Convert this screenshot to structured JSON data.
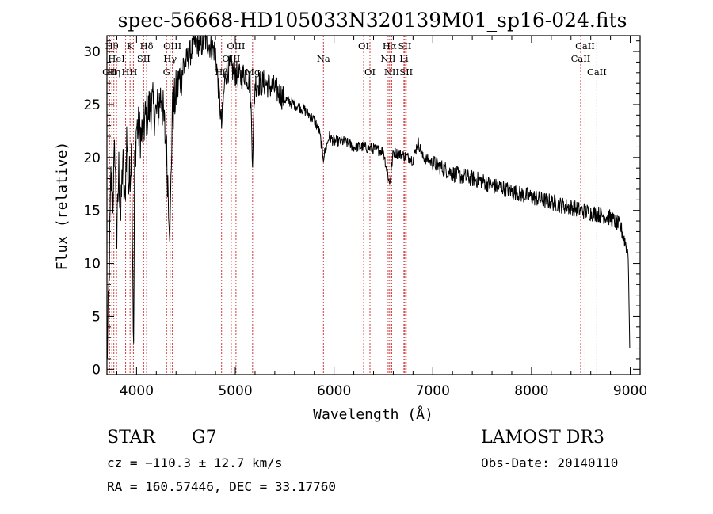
{
  "chart_data": {
    "type": "line",
    "title": "spec-56668-HD105033N320139M01_sp16-024.fits",
    "xlabel": "Wavelength (Å)",
    "ylabel": "Flux (relative)",
    "xlim": [
      3700,
      9100
    ],
    "ylim": [
      -0.5,
      31.5
    ],
    "x_ticks": [
      4000,
      5000,
      6000,
      7000,
      8000,
      9000
    ],
    "y_ticks": [
      0,
      5,
      10,
      15,
      20,
      25,
      30
    ],
    "series": [
      {
        "name": "flux",
        "anchors": [
          [
            3700,
            0.5
          ],
          [
            3720,
            8
          ],
          [
            3740,
            18
          ],
          [
            3760,
            16
          ],
          [
            3780,
            21
          ],
          [
            3800,
            12
          ],
          [
            3820,
            19
          ],
          [
            3840,
            14
          ],
          [
            3860,
            20
          ],
          [
            3880,
            15
          ],
          [
            3900,
            22
          ],
          [
            3920,
            17
          ],
          [
            3950,
            21
          ],
          [
            3970,
            1
          ],
          [
            3980,
            19
          ],
          [
            4000,
            23
          ],
          [
            4050,
            22
          ],
          [
            4100,
            24
          ],
          [
            4150,
            25
          ],
          [
            4200,
            24
          ],
          [
            4250,
            26
          ],
          [
            4300,
            21
          ],
          [
            4340,
            13
          ],
          [
            4360,
            24
          ],
          [
            4400,
            26
          ],
          [
            4450,
            28
          ],
          [
            4500,
            29
          ],
          [
            4550,
            30
          ],
          [
            4600,
            31
          ],
          [
            4650,
            30.5
          ],
          [
            4700,
            31
          ],
          [
            4750,
            30.5
          ],
          [
            4800,
            30
          ],
          [
            4861,
            23
          ],
          [
            4900,
            28
          ],
          [
            4950,
            28.5
          ],
          [
            5000,
            28
          ],
          [
            5050,
            27.5
          ],
          [
            5100,
            28
          ],
          [
            5150,
            27
          ],
          [
            5175,
            20
          ],
          [
            5200,
            27
          ],
          [
            5300,
            27
          ],
          [
            5400,
            26.5
          ],
          [
            5500,
            25.5
          ],
          [
            5600,
            25
          ],
          [
            5700,
            24.5
          ],
          [
            5800,
            23.5
          ],
          [
            5850,
            22.5
          ],
          [
            5893,
            20
          ],
          [
            5950,
            22
          ],
          [
            6000,
            21.5
          ],
          [
            6100,
            21.5
          ],
          [
            6200,
            21
          ],
          [
            6300,
            21
          ],
          [
            6400,
            20.8
          ],
          [
            6500,
            20.6
          ],
          [
            6563,
            17.5
          ],
          [
            6600,
            20.5
          ],
          [
            6700,
            20.2
          ],
          [
            6800,
            19.8
          ],
          [
            6850,
            21.5
          ],
          [
            6900,
            20
          ],
          [
            7000,
            19.5
          ],
          [
            7100,
            19
          ],
          [
            7200,
            18.5
          ],
          [
            7300,
            18.2
          ],
          [
            7400,
            18
          ],
          [
            7500,
            17.8
          ],
          [
            7600,
            17.3
          ],
          [
            7700,
            17.2
          ],
          [
            7800,
            16.8
          ],
          [
            7900,
            16.5
          ],
          [
            8000,
            16.3
          ],
          [
            8100,
            16
          ],
          [
            8200,
            15.8
          ],
          [
            8300,
            15.5
          ],
          [
            8400,
            15.3
          ],
          [
            8500,
            15
          ],
          [
            8600,
            14.8
          ],
          [
            8700,
            14.6
          ],
          [
            8800,
            14.3
          ],
          [
            8900,
            13.5
          ],
          [
            8950,
            12
          ],
          [
            8980,
            11
          ],
          [
            8995,
            2
          ]
        ]
      }
    ],
    "line_markers": [
      {
        "wl": 3727,
        "labels": [
          "OII"
        ],
        "row": 3
      },
      {
        "wl": 3750,
        "labels": [
          "Hθ"
        ],
        "row": 1
      },
      {
        "wl": 3770,
        "labels": [
          "Hη"
        ],
        "row": 3
      },
      {
        "wl": 3797,
        "labels": [
          "HeI"
        ],
        "row": 2
      },
      {
        "wl": 3889,
        "labels": [
          "H"
        ],
        "row": 3
      },
      {
        "wl": 3934,
        "labels": [
          "K"
        ],
        "row": 1
      },
      {
        "wl": 3968,
        "labels": [
          "H"
        ],
        "row": 3
      },
      {
        "wl": 4072,
        "labels": [
          "SII"
        ],
        "row": 2
      },
      {
        "wl": 4102,
        "labels": [
          "Hδ"
        ],
        "row": 1
      },
      {
        "wl": 4304,
        "labels": [
          "G"
        ],
        "row": 3
      },
      {
        "wl": 4340,
        "labels": [
          "Hγ"
        ],
        "row": 2
      },
      {
        "wl": 4363,
        "labels": [
          "OIII"
        ],
        "row": 1
      },
      {
        "wl": 4861,
        "labels": [
          "Hβ"
        ],
        "row": 3
      },
      {
        "wl": 4959,
        "labels": [
          "OIII"
        ],
        "row": 2
      },
      {
        "wl": 5007,
        "labels": [
          "OIII"
        ],
        "row": 1
      },
      {
        "wl": 5175,
        "labels": [
          "Mg"
        ],
        "row": 3
      },
      {
        "wl": 5893,
        "labels": [
          "Na"
        ],
        "row": 2
      },
      {
        "wl": 6300,
        "labels": [
          "OI"
        ],
        "row": 1
      },
      {
        "wl": 6364,
        "labels": [
          "OI"
        ],
        "row": 3
      },
      {
        "wl": 6548,
        "labels": [
          "NII"
        ],
        "row": 2
      },
      {
        "wl": 6563,
        "labels": [
          "Hα"
        ],
        "row": 1
      },
      {
        "wl": 6584,
        "labels": [
          "NII"
        ],
        "row": 3
      },
      {
        "wl": 6708,
        "labels": [
          "Li"
        ],
        "row": 2
      },
      {
        "wl": 6717,
        "labels": [
          "SII"
        ],
        "row": 1
      },
      {
        "wl": 6731,
        "labels": [
          "SII"
        ],
        "row": 3
      },
      {
        "wl": 8498,
        "labels": [
          "CaII"
        ],
        "row": 2
      },
      {
        "wl": 8542,
        "labels": [
          "CaII"
        ],
        "row": 1
      },
      {
        "wl": 8662,
        "labels": [
          "CaII"
        ],
        "row": 3
      }
    ],
    "marker_color": "#d23c3c"
  },
  "info": {
    "object_class": "STAR",
    "subclass": "G7",
    "survey": "LAMOST DR3",
    "redshift": "cz = −110.3 ± 12.7 km/s",
    "obs_date": "Obs-Date: 20140110",
    "coordinates": "RA = 160.57446, DEC =  33.17760"
  }
}
